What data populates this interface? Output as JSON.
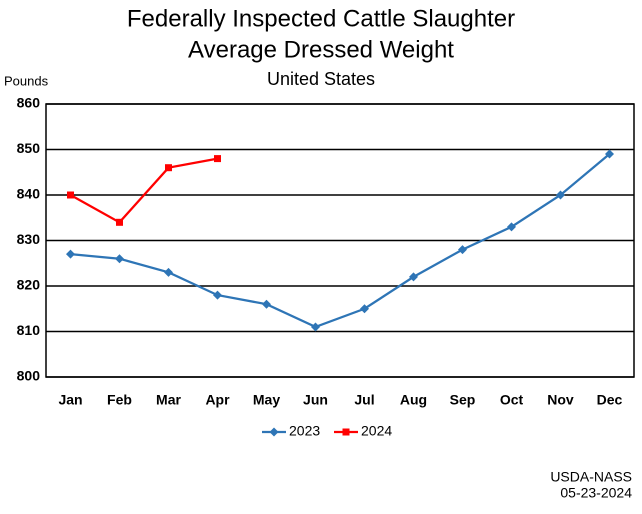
{
  "chart_data": {
    "type": "line",
    "title": [
      "Federally Inspected Cattle Slaughter",
      "Average Dressed Weight"
    ],
    "subtitle": "United States",
    "y_label": "Pounds",
    "categories": [
      "Jan",
      "Feb",
      "Mar",
      "Apr",
      "May",
      "Jun",
      "Jul",
      "Aug",
      "Sep",
      "Oct",
      "Nov",
      "Dec"
    ],
    "series": [
      {
        "name": "2023",
        "color": "#2e75b6",
        "marker": "diamond",
        "values": [
          827,
          826,
          823,
          818,
          816,
          811,
          815,
          822,
          828,
          833,
          840,
          849
        ]
      },
      {
        "name": "2024",
        "color": "#ff0000",
        "marker": "square",
        "values": [
          840,
          834,
          846,
          848,
          null,
          null,
          null,
          null,
          null,
          null,
          null,
          null
        ]
      }
    ],
    "ylim": [
      800,
      860
    ],
    "yticks": [
      800,
      810,
      820,
      830,
      840,
      850,
      860
    ],
    "grid": true,
    "legend": "bottom",
    "source": [
      "USDA-NASS",
      "05-23-2024"
    ]
  }
}
